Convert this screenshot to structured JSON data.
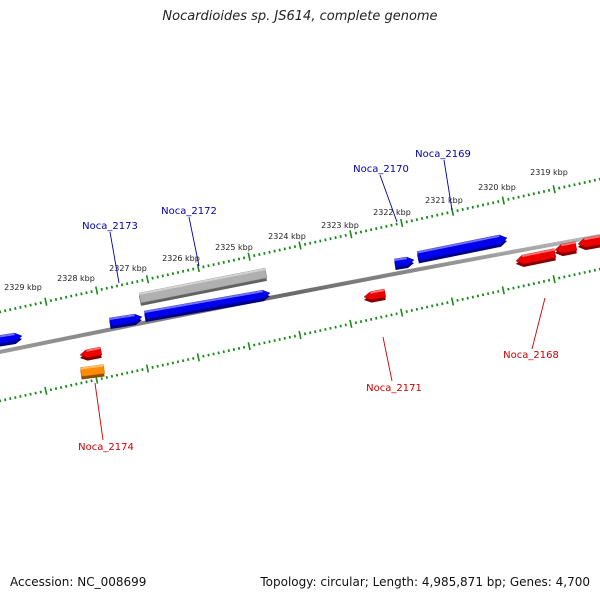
{
  "title": "Nocardioides sp. JS614, complete genome",
  "footer": {
    "accession": "Accession: NC_008699",
    "summary": "Topology: circular; Length: 4,985,871 bp; Genes: 4,700"
  },
  "scale_unit": "kbp",
  "ticks_kbp": [
    2319,
    2320,
    2321,
    2322,
    2323,
    2324,
    2325,
    2326,
    2327,
    2328,
    2329
  ],
  "colors": {
    "forward_gene": "#0000ee",
    "reverse_gene": "#ee0000",
    "selected_gene": "#ff8c00",
    "pseudo_gene": "#b0b0b0",
    "backbone": "#777777",
    "ticks": "#1a8a1a",
    "forward_label": "#0000aa",
    "reverse_label": "#cc0000"
  },
  "genes": [
    {
      "label": "Noca_2169",
      "strand": "forward"
    },
    {
      "label": "Noca_2170",
      "strand": "forward"
    },
    {
      "label": "Noca_2172",
      "strand": "forward"
    },
    {
      "label": "Noca_2173",
      "strand": "forward"
    },
    {
      "label": "Noca_2168",
      "strand": "reverse"
    },
    {
      "label": "Noca_2171",
      "strand": "reverse"
    },
    {
      "label": "Noca_2174",
      "strand": "reverse"
    }
  ]
}
